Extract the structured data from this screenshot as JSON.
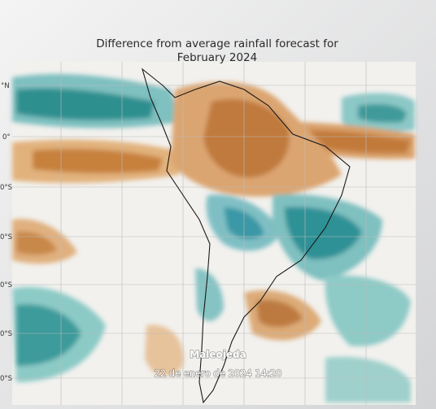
{
  "title_lines": [
    "Difference from average rainfall forecast for",
    "February 2024"
  ],
  "latitude_labels": [
    "°N",
    "0°",
    "0°S",
    "0°S",
    "0°S",
    "0°S",
    "0°S"
  ],
  "watermark": {
    "author": "Maleojeda",
    "timestamp": "22 de enero de 2024 14:20"
  }
}
